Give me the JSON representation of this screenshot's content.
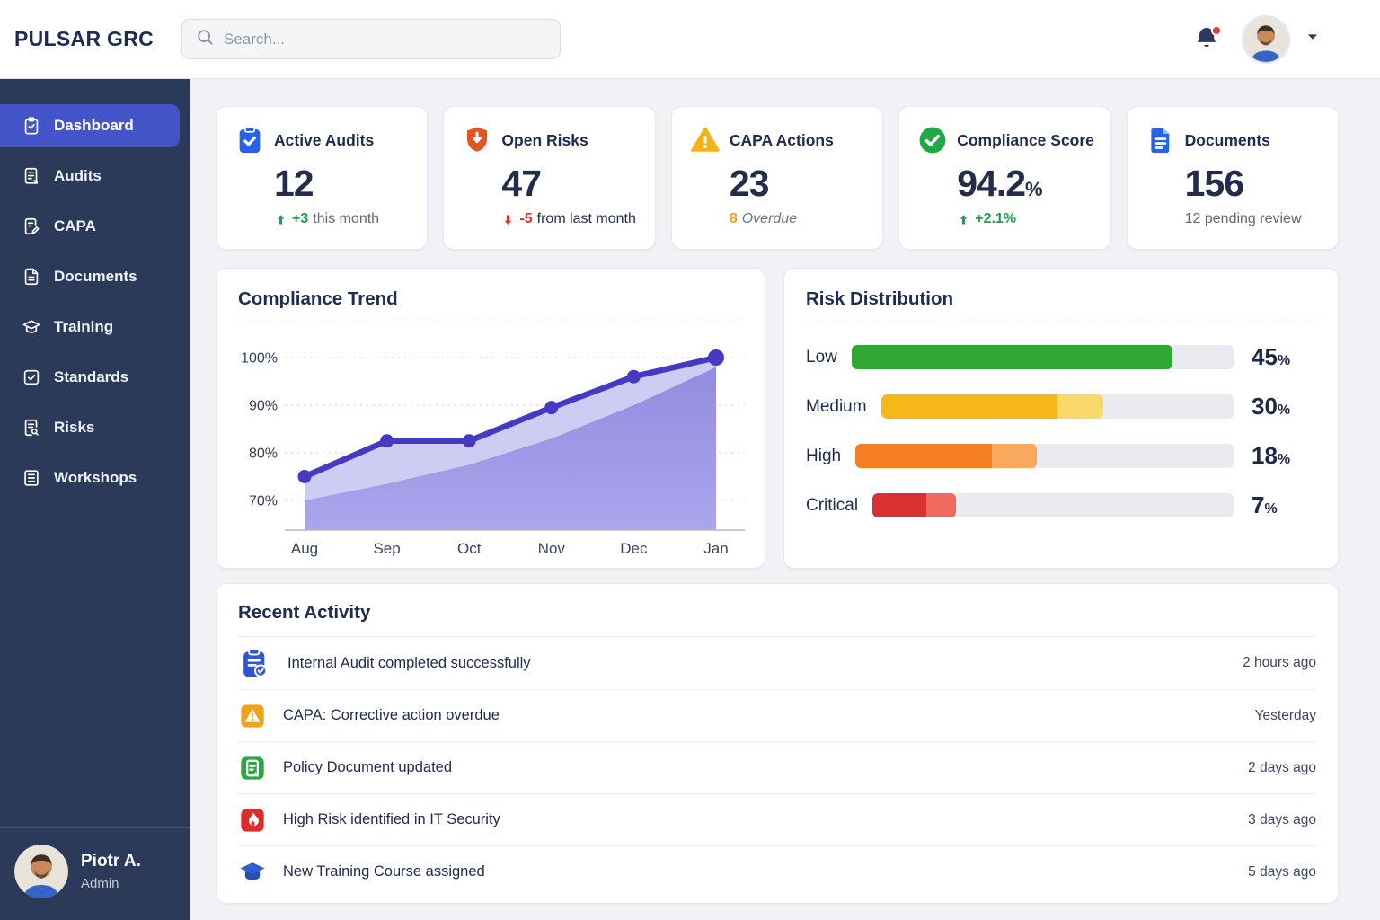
{
  "app": {
    "logo": "PULSAR GRC"
  },
  "topbar": {
    "search_placeholder": "Search...",
    "notification_unread": true
  },
  "sidebar": {
    "items": [
      {
        "label": "Dashboard",
        "icon": "clipboard-check",
        "active": true
      },
      {
        "label": "Audits",
        "icon": "file-audit",
        "active": false
      },
      {
        "label": "CAPA",
        "icon": "file-pen",
        "active": false
      },
      {
        "label": "Documents",
        "icon": "file-lines",
        "active": false
      },
      {
        "label": "Training",
        "icon": "grad-cap",
        "active": false
      },
      {
        "label": "Standards",
        "icon": "square-check",
        "active": false
      },
      {
        "label": "Risks",
        "icon": "file-search",
        "active": false
      },
      {
        "label": "Workshops",
        "icon": "list-box",
        "active": false
      }
    ],
    "profile": {
      "name": "Piotr A.",
      "role": "Admin"
    }
  },
  "kpis": [
    {
      "title": "Active Audits",
      "value": "12",
      "suffix": "",
      "icon": "clipboard-check-solid",
      "icon_color": "#2563eb",
      "trend": {
        "arrow": "up",
        "arrow_color": "#18a349",
        "parts": [
          {
            "text": "+3",
            "color": "#18a349",
            "bold": true
          },
          {
            "text": "this month",
            "color": "#5f6977"
          }
        ]
      }
    },
    {
      "title": "Open Risks",
      "value": "47",
      "suffix": "",
      "icon": "shield-alert",
      "icon_color": "#e4551e",
      "trend": {
        "arrow": "down",
        "arrow_color": "#dc2f2f",
        "parts": [
          {
            "text": "-5",
            "color": "#dc2f2f",
            "bold": true
          },
          {
            "text": "from last month",
            "color": "#1f2b4d"
          }
        ]
      }
    },
    {
      "title": "CAPA Actions",
      "value": "23",
      "suffix": "",
      "icon": "triangle-alert",
      "icon_color": "#f6b018",
      "trend": {
        "arrow": null,
        "parts": [
          {
            "text": "8",
            "color": "#f0a116",
            "bold": true
          },
          {
            "text": "Overdue",
            "color": "#6b7280",
            "italic": true
          }
        ]
      }
    },
    {
      "title": "Compliance Score",
      "value": "94.2",
      "suffix": "%",
      "icon": "check-circle",
      "icon_color": "#1fa944",
      "trend": {
        "arrow": "up",
        "arrow_color": "#18a349",
        "parts": [
          {
            "text": "+2.1%",
            "color": "#18a349",
            "bold": true
          }
        ]
      }
    },
    {
      "title": "Documents",
      "value": "156",
      "suffix": "",
      "icon": "file-solid",
      "icon_color": "#2563eb",
      "trend": {
        "arrow": null,
        "parts": [
          {
            "text": "12 pending review",
            "color": "#5f6977"
          }
        ]
      }
    }
  ],
  "chart_data": [
    {
      "type": "area",
      "title": "Compliance Trend",
      "x": [
        "Aug",
        "Sep",
        "Oct",
        "Nov",
        "Dec",
        "Jan"
      ],
      "series": [
        {
          "name": "Compliance %",
          "values": [
            75,
            82.5,
            82.5,
            89.5,
            96,
            100
          ]
        },
        {
          "name": "Lower area boundary (decorative band, est.)",
          "values": [
            70,
            73.5,
            77.5,
            83,
            90,
            98
          ]
        }
      ],
      "yticks": [
        70,
        80,
        90,
        100
      ],
      "ytick_suffix": "%",
      "ylim": [
        65,
        106
      ],
      "grid": "dotted horizontal",
      "legend": "none",
      "line_color": "#4639c2",
      "band_fill": "#cfccf3",
      "area_fill_top": "#938cdf",
      "area_fill_bottom": "#aba5ec"
    },
    {
      "type": "bar",
      "title": "Risk Distribution",
      "orientation": "horizontal",
      "categories": [
        "Low",
        "Medium",
        "High",
        "Critical"
      ],
      "values": [
        45,
        30,
        18,
        7
      ],
      "unit": "%",
      "legend": "none",
      "track_color": "#e9ebf0",
      "bars": [
        {
          "label": "Low",
          "value": 45,
          "main_pct": 84,
          "total_pct": 84,
          "color": "#31a733",
          "color_light": "#31a733"
        },
        {
          "label": "Medium",
          "value": 30,
          "main_pct": 50,
          "total_pct": 63,
          "color": "#f6b71b",
          "color_light": "#f9d96a"
        },
        {
          "label": "High",
          "value": 18,
          "main_pct": 36,
          "total_pct": 48,
          "color": "#f57e22",
          "color_light": "#f9a95e"
        },
        {
          "label": "Critical",
          "value": 7,
          "main_pct": 15,
          "total_pct": 23,
          "color": "#d93032",
          "color_light": "#ee6a5f"
        }
      ]
    }
  ],
  "activity": {
    "title": "Recent Activity",
    "items": [
      {
        "icon": "clipboard-badge",
        "icon_color": "#3056d3",
        "text": "Internal Audit completed successfully",
        "time": "2 hours ago"
      },
      {
        "icon": "square-alert",
        "icon_color": "#f0a31c",
        "text": "CAPA: Corrective action overdue",
        "time": "Yesterday"
      },
      {
        "icon": "square-doc",
        "icon_color": "#2ba546",
        "text": "Policy Document updated",
        "time": "2 days ago"
      },
      {
        "icon": "square-flame",
        "icon_color": "#d92c2c",
        "text": "High Risk identified in IT Security",
        "time": "3 days ago"
      },
      {
        "icon": "grad-cap-solid",
        "icon_color": "#2e5ed2",
        "text": "New Training Course assigned",
        "time": "5 days ago"
      }
    ]
  }
}
